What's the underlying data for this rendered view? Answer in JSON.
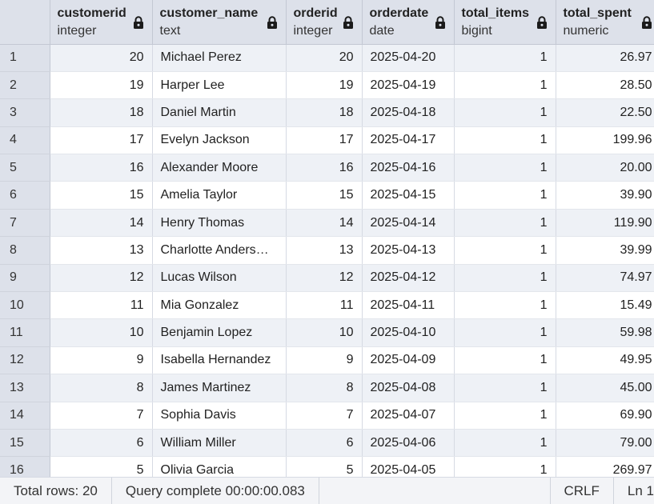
{
  "columns": [
    {
      "name": "customerid",
      "type": "integer",
      "align": "num"
    },
    {
      "name": "customer_name",
      "type": "text",
      "align": "txt"
    },
    {
      "name": "orderid",
      "type": "integer",
      "align": "num"
    },
    {
      "name": "orderdate",
      "type": "date",
      "align": "txt"
    },
    {
      "name": "total_items",
      "type": "bigint",
      "align": "num"
    },
    {
      "name": "total_spent",
      "type": "numeric",
      "align": "num"
    }
  ],
  "rows": [
    {
      "n": "1",
      "cells": [
        "20",
        "Michael Perez",
        "20",
        "2025-04-20",
        "1",
        "26.97"
      ]
    },
    {
      "n": "2",
      "cells": [
        "19",
        "Harper Lee",
        "19",
        "2025-04-19",
        "1",
        "28.50"
      ]
    },
    {
      "n": "3",
      "cells": [
        "18",
        "Daniel Martin",
        "18",
        "2025-04-18",
        "1",
        "22.50"
      ]
    },
    {
      "n": "4",
      "cells": [
        "17",
        "Evelyn Jackson",
        "17",
        "2025-04-17",
        "1",
        "199.96"
      ]
    },
    {
      "n": "5",
      "cells": [
        "16",
        "Alexander Moore",
        "16",
        "2025-04-16",
        "1",
        "20.00"
      ]
    },
    {
      "n": "6",
      "cells": [
        "15",
        "Amelia Taylor",
        "15",
        "2025-04-15",
        "1",
        "39.90"
      ]
    },
    {
      "n": "7",
      "cells": [
        "14",
        "Henry Thomas",
        "14",
        "2025-04-14",
        "1",
        "119.90"
      ]
    },
    {
      "n": "8",
      "cells": [
        "13",
        "Charlotte Anders…",
        "13",
        "2025-04-13",
        "1",
        "39.99"
      ]
    },
    {
      "n": "9",
      "cells": [
        "12",
        "Lucas Wilson",
        "12",
        "2025-04-12",
        "1",
        "74.97"
      ]
    },
    {
      "n": "10",
      "cells": [
        "11",
        "Mia Gonzalez",
        "11",
        "2025-04-11",
        "1",
        "15.49"
      ]
    },
    {
      "n": "11",
      "cells": [
        "10",
        "Benjamin Lopez",
        "10",
        "2025-04-10",
        "1",
        "59.98"
      ]
    },
    {
      "n": "12",
      "cells": [
        "9",
        "Isabella Hernandez",
        "9",
        "2025-04-09",
        "1",
        "49.95"
      ]
    },
    {
      "n": "13",
      "cells": [
        "8",
        "James Martinez",
        "8",
        "2025-04-08",
        "1",
        "45.00"
      ]
    },
    {
      "n": "14",
      "cells": [
        "7",
        "Sophia Davis",
        "7",
        "2025-04-07",
        "1",
        "69.90"
      ]
    },
    {
      "n": "15",
      "cells": [
        "6",
        "William Miller",
        "6",
        "2025-04-06",
        "1",
        "79.00"
      ]
    },
    {
      "n": "16",
      "cells": [
        "5",
        "Olivia Garcia",
        "5",
        "2025-04-05",
        "1",
        "269.97"
      ]
    }
  ],
  "status": {
    "total_rows": "Total rows: 20",
    "query": "Query complete 00:00:00.083",
    "eol": "CRLF",
    "position": "Ln 1"
  },
  "icons": {
    "column_lock": "lock-icon"
  },
  "colors": {
    "header_bg": "#dde1ea",
    "stripe_bg": "#eef1f6",
    "text": "#222222"
  }
}
